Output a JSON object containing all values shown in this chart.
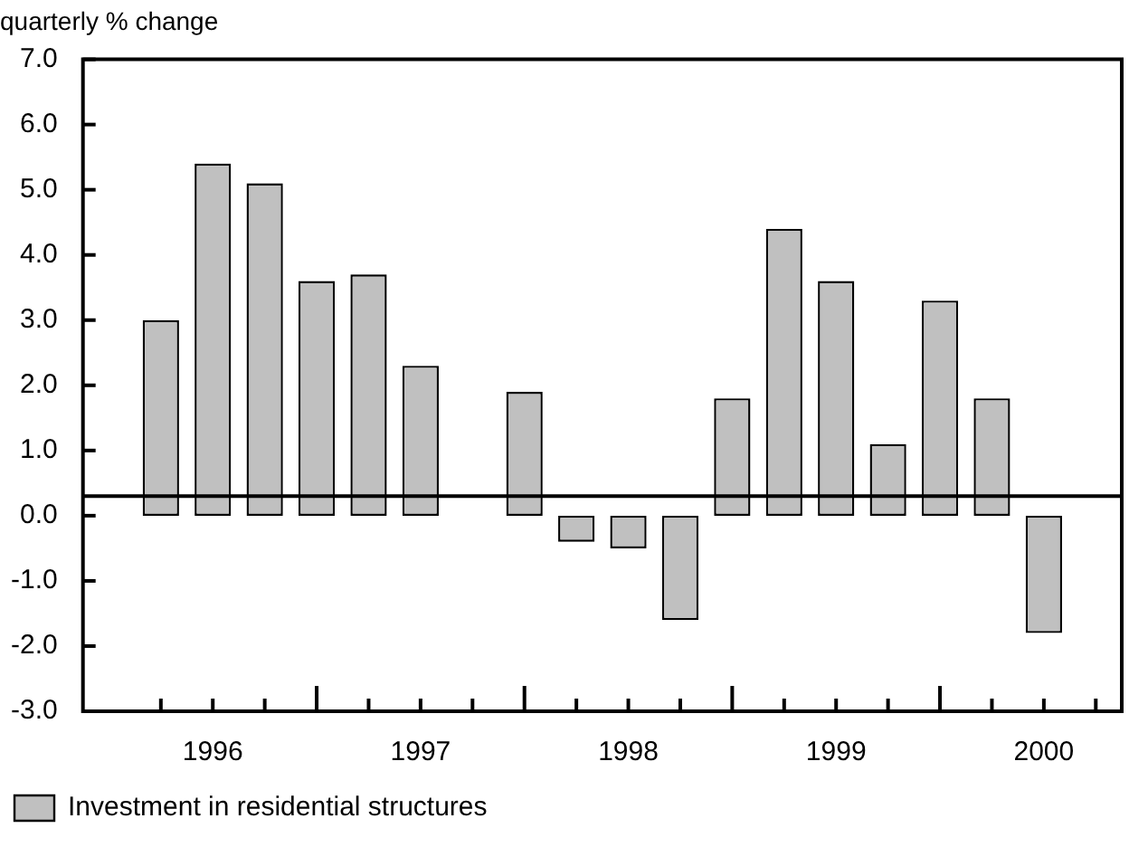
{
  "chart_data": {
    "type": "bar",
    "ylabel": "quarterly % change",
    "categories": [
      null,
      null,
      "1996",
      null,
      null,
      null,
      "1997",
      null,
      null,
      null,
      "1998",
      null,
      null,
      null,
      "1999",
      null,
      null,
      null,
      "2000",
      null
    ],
    "series": [
      {
        "name": "Investment in residential structures",
        "color": "#c0c0c0",
        "values": [
          null,
          3.0,
          5.4,
          5.1,
          3.6,
          3.7,
          2.3,
          null,
          1.9,
          -0.4,
          -0.5,
          -1.6,
          1.8,
          4.4,
          3.6,
          1.1,
          3.3,
          1.8,
          -1.8,
          null
        ]
      }
    ],
    "ref_lines": [
      {
        "axis": "y",
        "value": 0.3,
        "color": "#000000"
      }
    ],
    "ylim": [
      -3,
      7
    ],
    "yticks": [
      {
        "value": -3,
        "label": "-3.0"
      },
      {
        "value": -2,
        "label": "-2.0"
      },
      {
        "value": -1,
        "label": "-1.0"
      },
      {
        "value": 0,
        "label": "0.0"
      },
      {
        "value": 1,
        "label": "1.0"
      },
      {
        "value": 2,
        "label": "2.0"
      },
      {
        "value": 3,
        "label": "3.0"
      },
      {
        "value": 4,
        "label": "4.0"
      },
      {
        "value": 5,
        "label": "5.0"
      },
      {
        "value": 6,
        "label": "6.0"
      },
      {
        "value": 7,
        "label": "7.0"
      }
    ],
    "grid": false,
    "legend": "bottom left"
  }
}
